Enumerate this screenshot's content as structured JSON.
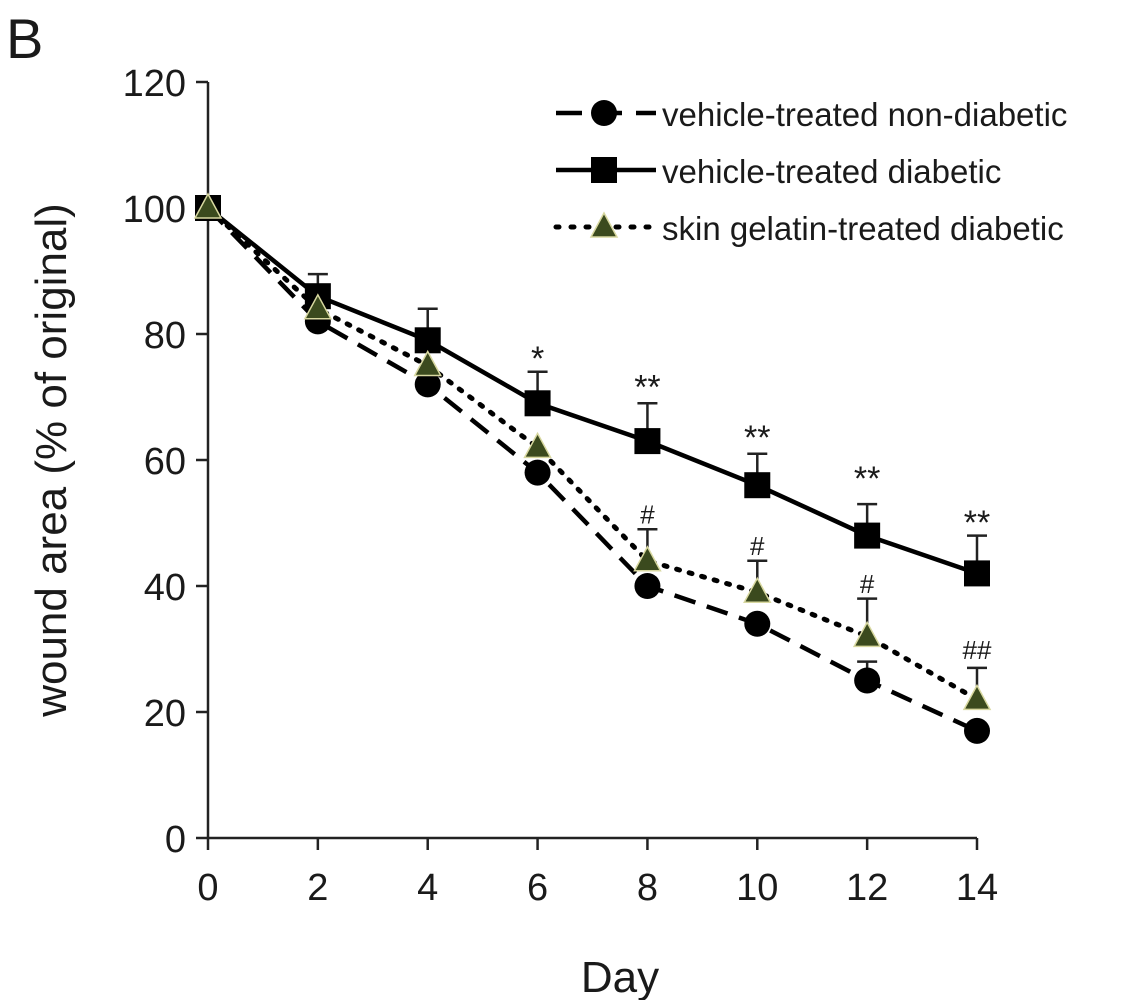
{
  "panel_label": "B",
  "chart_data": {
    "type": "line",
    "xlabel": "Day",
    "ylabel": "wound area (% of original)",
    "xlim": [
      0,
      14
    ],
    "ylim": [
      0,
      120
    ],
    "x_ticks": [
      0,
      2,
      4,
      6,
      8,
      10,
      12,
      14
    ],
    "y_ticks": [
      0,
      20,
      40,
      60,
      80,
      100,
      120
    ],
    "grid": false,
    "legend_position": "top-right",
    "series": [
      {
        "name": "vehicle-treated non-diabetic",
        "line_style": "dashed",
        "marker": "circle",
        "marker_color": "#000000",
        "x": [
          0,
          2,
          4,
          6,
          8,
          10,
          12,
          14
        ],
        "values": [
          100,
          82,
          72,
          58,
          40,
          34,
          25,
          17
        ],
        "errors": [
          0,
          0,
          0,
          0,
          0,
          0,
          3,
          0
        ]
      },
      {
        "name": "vehicle-treated diabetic",
        "line_style": "solid",
        "marker": "square",
        "marker_color": "#000000",
        "x": [
          0,
          2,
          4,
          6,
          8,
          10,
          12,
          14
        ],
        "values": [
          100,
          86,
          79,
          69,
          63,
          56,
          48,
          42
        ],
        "errors": [
          0,
          3.5,
          5,
          5,
          6,
          5,
          5,
          6
        ]
      },
      {
        "name": "skin gelatin-treated diabetic",
        "line_style": "dotted",
        "marker": "triangle",
        "marker_color": "#3b4a1e",
        "x": [
          0,
          2,
          4,
          6,
          8,
          10,
          12,
          14
        ],
        "values": [
          100,
          84,
          75,
          62,
          44,
          39,
          32,
          22
        ],
        "errors": [
          0,
          0,
          0,
          0,
          5,
          5,
          6,
          5
        ]
      }
    ],
    "annotations": [
      {
        "x": 6,
        "y": 76.5,
        "text": "*"
      },
      {
        "x": 8,
        "y": 72,
        "text": "**"
      },
      {
        "x": 10,
        "y": 64,
        "text": "**"
      },
      {
        "x": 12,
        "y": 57.5,
        "text": "**"
      },
      {
        "x": 14,
        "y": 50.5,
        "text": "**"
      },
      {
        "x": 8,
        "y": 51.5,
        "text": "#"
      },
      {
        "x": 10,
        "y": 46.5,
        "text": "#"
      },
      {
        "x": 12,
        "y": 40.5,
        "text": "#"
      },
      {
        "x": 14,
        "y": 30,
        "text": "##"
      }
    ]
  }
}
